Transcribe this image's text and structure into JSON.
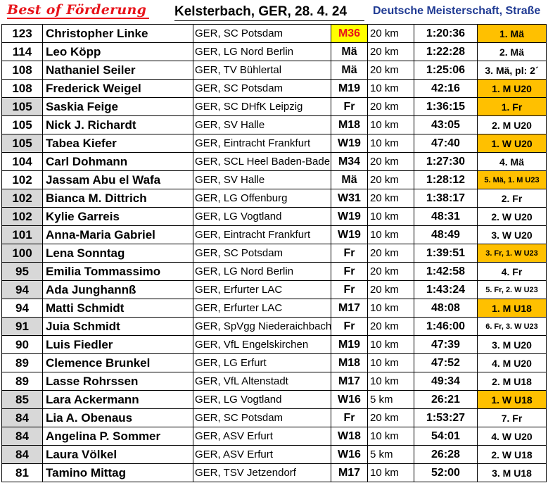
{
  "header": {
    "brand": "Best of Förderung",
    "event": "Kelsterbach, GER, 28. 4. 24",
    "championship": "Deutsche Meisterschaft, Straße"
  },
  "colors": {
    "brand_red": "#e8141b",
    "title_blue": "#1f3a93",
    "gold": "#ffc000",
    "highlight_yellow": "#ffff00",
    "grey": "#d8d8d8"
  },
  "rows": [
    {
      "pts": "123",
      "name": "Christopher Linke",
      "club": "GER, SC Potsdam",
      "cat": "M36",
      "dist": "20 km",
      "time": "1:20:36",
      "place": "1. Mä",
      "grey": false,
      "cat_hl": true,
      "gold": true,
      "small": false
    },
    {
      "pts": "114",
      "name": "Leo Köpp",
      "club": "GER, LG Nord Berlin",
      "cat": "Mä",
      "dist": "20 km",
      "time": "1:22:28",
      "place": "2. Mä",
      "grey": false,
      "cat_hl": false,
      "gold": false,
      "small": false
    },
    {
      "pts": "108",
      "name": "Nathaniel Seiler",
      "club": "GER, TV Bühlertal",
      "cat": "Mä",
      "dist": "20 km",
      "time": "1:25:06",
      "place": "3. Mä, pl: 2´",
      "grey": false,
      "cat_hl": false,
      "gold": false,
      "small": false
    },
    {
      "pts": "108",
      "name": "Frederick Weigel",
      "club": "GER, SC Potsdam",
      "cat": "M19",
      "dist": "10 km",
      "time": "42:16",
      "place": "1. M U20",
      "grey": false,
      "cat_hl": false,
      "gold": true,
      "small": false
    },
    {
      "pts": "105",
      "name": "Saskia Feige",
      "club": "GER, SC DHfK Leipzig",
      "cat": "Fr",
      "dist": "20 km",
      "time": "1:36:15",
      "place": "1. Fr",
      "grey": true,
      "cat_hl": false,
      "gold": true,
      "small": false
    },
    {
      "pts": "105",
      "name": "Nick J. Richardt",
      "club": "GER, SV Halle",
      "cat": "M18",
      "dist": "10 km",
      "time": "43:05",
      "place": "2. M U20",
      "grey": false,
      "cat_hl": false,
      "gold": false,
      "small": false
    },
    {
      "pts": "105",
      "name": "Tabea Kiefer",
      "club": "GER, Eintracht Frankfurt",
      "cat": "W19",
      "dist": "10 km",
      "time": "47:40",
      "place": "1. W U20",
      "grey": true,
      "cat_hl": false,
      "gold": true,
      "small": false
    },
    {
      "pts": "104",
      "name": "Carl Dohmann",
      "club": "GER, SCL Heel Baden-Baden",
      "cat": "M34",
      "dist": "20 km",
      "time": "1:27:30",
      "place": "4. Mä",
      "grey": false,
      "cat_hl": false,
      "gold": false,
      "small": false
    },
    {
      "pts": "102",
      "name": "Jassam Abu el Wafa",
      "club": "GER, SV Halle",
      "cat": "Mä",
      "dist": "20 km",
      "time": "1:28:12",
      "place": "5. Mä, 1. M U23",
      "grey": false,
      "cat_hl": false,
      "gold": true,
      "small": true
    },
    {
      "pts": "102",
      "name": "Bianca M. Dittrich",
      "club": "GER, LG Offenburg",
      "cat": "W31",
      "dist": "20 km",
      "time": "1:38:17",
      "place": "2. Fr",
      "grey": true,
      "cat_hl": false,
      "gold": false,
      "small": false
    },
    {
      "pts": "102",
      "name": "Kylie Garreis",
      "club": "GER, LG Vogtland",
      "cat": "W19",
      "dist": "10 km",
      "time": "48:31",
      "place": "2. W U20",
      "grey": true,
      "cat_hl": false,
      "gold": false,
      "small": false
    },
    {
      "pts": "101",
      "name": "Anna-Maria Gabriel",
      "club": "GER, Eintracht Frankfurt",
      "cat": "W19",
      "dist": "10 km",
      "time": "48:49",
      "place": "3. W U20",
      "grey": true,
      "cat_hl": false,
      "gold": false,
      "small": false
    },
    {
      "pts": "100",
      "name": "Lena Sonntag",
      "club": "GER, SC Potsdam",
      "cat": "Fr",
      "dist": "20 km",
      "time": "1:39:51",
      "place": "3. Fr, 1. W U23",
      "grey": true,
      "cat_hl": false,
      "gold": true,
      "small": true
    },
    {
      "pts": "95",
      "name": "Emilia Tommassimo",
      "club": "GER, LG Nord Berlin",
      "cat": "Fr",
      "dist": "20 km",
      "time": "1:42:58",
      "place": "4. Fr",
      "grey": true,
      "cat_hl": false,
      "gold": false,
      "small": false
    },
    {
      "pts": "94",
      "name": "Ada Junghannß",
      "club": "GER, Erfurter LAC",
      "cat": "Fr",
      "dist": "20 km",
      "time": "1:43:24",
      "place": "5. Fr, 2. W U23",
      "grey": true,
      "cat_hl": false,
      "gold": false,
      "small": true
    },
    {
      "pts": "94",
      "name": "Matti Schmidt",
      "club": "GER, Erfurter LAC",
      "cat": "M17",
      "dist": "10 km",
      "time": "48:08",
      "place": "1. M U18",
      "grey": false,
      "cat_hl": false,
      "gold": true,
      "small": false
    },
    {
      "pts": "91",
      "name": "Juia Schmidt",
      "club": "GER, SpVgg Niederaichbach",
      "cat": "Fr",
      "dist": "20 km",
      "time": "1:46:00",
      "place": "6. Fr, 3. W U23",
      "grey": true,
      "cat_hl": false,
      "gold": false,
      "small": true
    },
    {
      "pts": "90",
      "name": "Luis Fiedler",
      "club": "GER, VfL Engelskirchen",
      "cat": "M19",
      "dist": "10 km",
      "time": "47:39",
      "place": "3. M U20",
      "grey": false,
      "cat_hl": false,
      "gold": false,
      "small": false
    },
    {
      "pts": "89",
      "name": "Clemence Brunkel",
      "club": "GER, LG Erfurt",
      "cat": "M18",
      "dist": "10 km",
      "time": "47:52",
      "place": "4. M U20",
      "grey": false,
      "cat_hl": false,
      "gold": false,
      "small": false
    },
    {
      "pts": "89",
      "name": "Lasse Rohrssen",
      "club": "GER, VfL Altenstadt",
      "cat": "M17",
      "dist": "10 km",
      "time": "49:34",
      "place": "2. M U18",
      "grey": false,
      "cat_hl": false,
      "gold": false,
      "small": false
    },
    {
      "pts": "85",
      "name": "Lara Ackermann",
      "club": "GER, LG Vogtland",
      "cat": "W16",
      "dist": "5 km",
      "time": "26:21",
      "place": "1. W U18",
      "grey": true,
      "cat_hl": false,
      "gold": true,
      "small": false
    },
    {
      "pts": "84",
      "name": "Lia A. Obenaus",
      "club": "GER, SC Potsdam",
      "cat": "Fr",
      "dist": "20 km",
      "time": "1:53:27",
      "place": "7. Fr",
      "grey": true,
      "cat_hl": false,
      "gold": false,
      "small": false
    },
    {
      "pts": "84",
      "name": "Angelina P. Sommer",
      "club": "GER, ASV Erfurt",
      "cat": "W18",
      "dist": "10 km",
      "time": "54:01",
      "place": "4. W U20",
      "grey": true,
      "cat_hl": false,
      "gold": false,
      "small": false
    },
    {
      "pts": "84",
      "name": "Laura Völkel",
      "club": "GER, ASV Erfurt",
      "cat": "W16",
      "dist": "5 km",
      "time": "26:28",
      "place": "2. W U18",
      "grey": true,
      "cat_hl": false,
      "gold": false,
      "small": false
    },
    {
      "pts": "81",
      "name": "Tamino Mittag",
      "club": "GER, TSV Jetzendorf",
      "cat": "M17",
      "dist": "10 km",
      "time": "52:00",
      "place": "3. M U18",
      "grey": false,
      "cat_hl": false,
      "gold": false,
      "small": false
    }
  ]
}
